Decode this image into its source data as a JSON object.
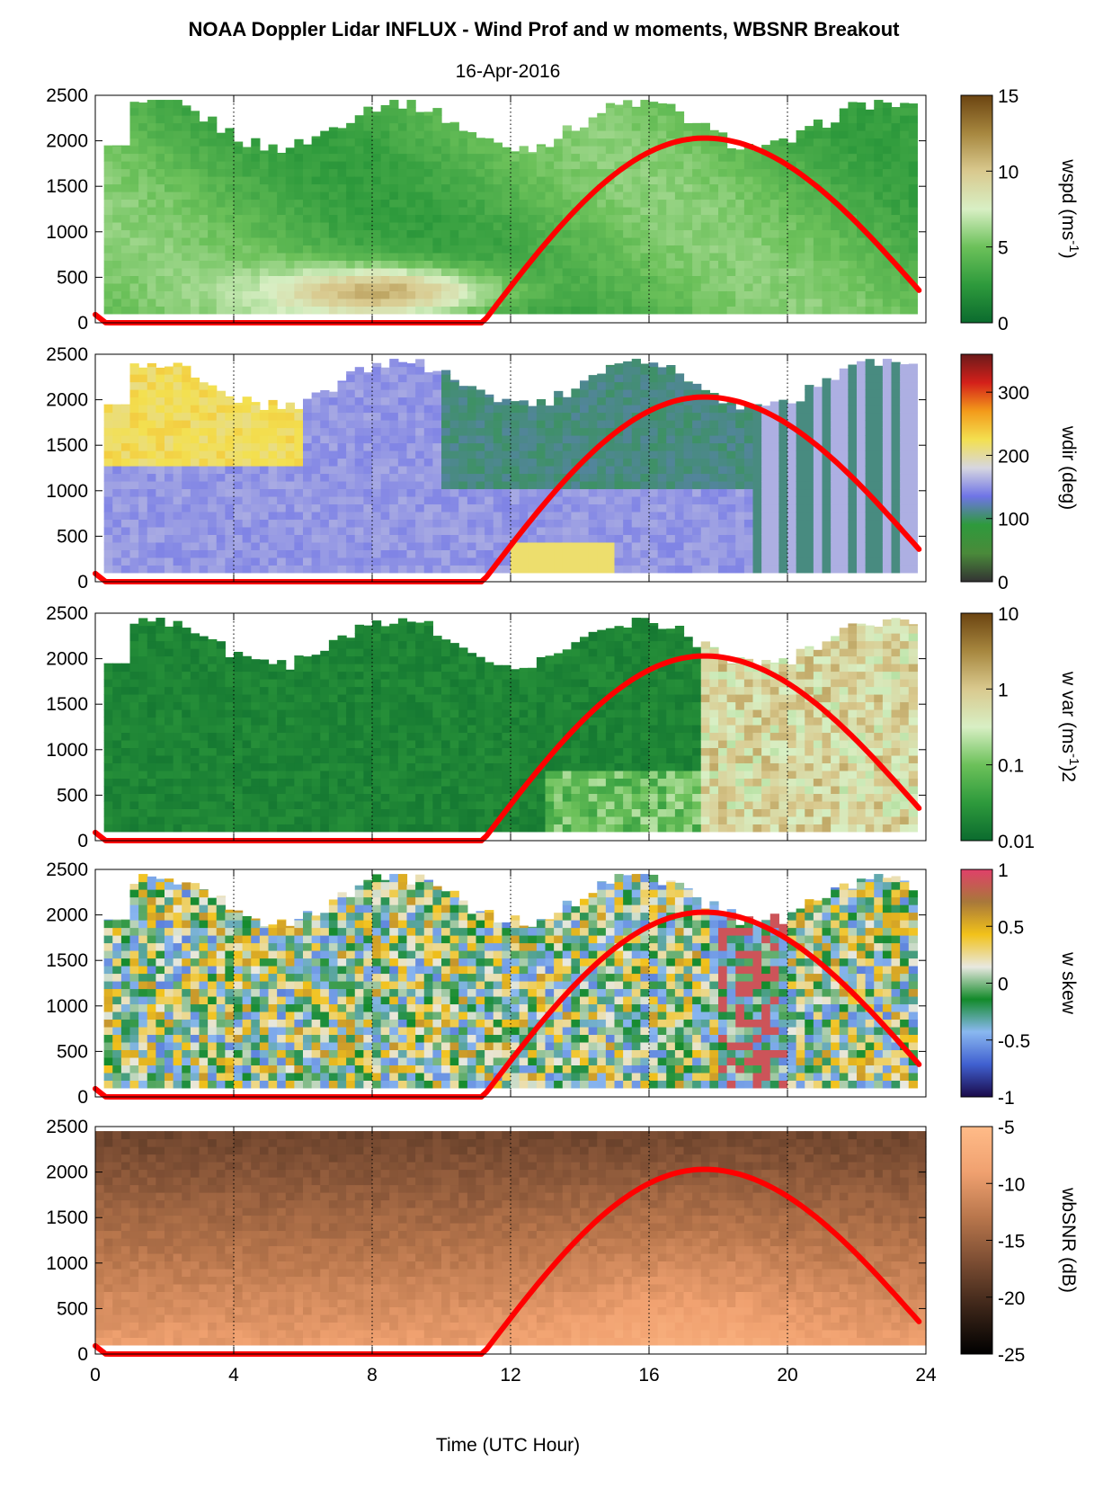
{
  "figure": {
    "title": "NOAA Doppler Lidar INFLUX - Wind Prof and w moments, WBSNR Breakout",
    "subtitle": "16-Apr-2016"
  },
  "colors": {
    "sun_curve": "#ff0000",
    "axes": "#000000",
    "background": "#ffffff"
  },
  "chart_data": [
    {
      "type": "heatmap",
      "name": "wspd",
      "x_range": [
        0,
        24
      ],
      "y_range": [
        0,
        2500
      ],
      "y_ticks": [
        0,
        500,
        1000,
        1500,
        2000,
        2500
      ],
      "colorbar_label": "wspd (ms-1)",
      "colorbar_label_text": "wspd (ms",
      "colorbar_label_sup": "-1",
      "colorbar_label_end": ")",
      "colorbar_range": [
        0,
        15
      ],
      "colorbar_ticks": [
        "0",
        "5",
        "10",
        "15"
      ],
      "colormap": [
        "#0b6b2e",
        "#2e9a3c",
        "#6cc15a",
        "#d8efc4",
        "#d9c98e",
        "#a7873f",
        "#6b4411"
      ],
      "sun_curve": [
        [
          0,
          0.09
        ],
        [
          0.3,
          0
        ],
        [
          11.2,
          0
        ],
        [
          17.6,
          2030
        ],
        [
          23.8,
          290
        ]
      ]
    },
    {
      "type": "heatmap",
      "name": "wdir",
      "x_range": [
        0,
        24
      ],
      "y_range": [
        0,
        2500
      ],
      "y_ticks": [
        0,
        500,
        1000,
        1500,
        2000,
        2500
      ],
      "colorbar_label": "wdir (deg)",
      "colorbar_label_text": "wdir (deg)",
      "colorbar_label_sup": "",
      "colorbar_label_end": "",
      "colorbar_range": [
        0,
        360
      ],
      "colorbar_ticks": [
        "0",
        "100",
        "200",
        "300"
      ],
      "colormap": [
        "#333333",
        "#4a8a3a",
        "#2e9a3c",
        "#6f74e6",
        "#d6d6e0",
        "#f3e050",
        "#f39a1a",
        "#d4201a",
        "#6b1a1a"
      ],
      "sun_curve": [
        [
          0,
          0.09
        ],
        [
          0.3,
          0
        ],
        [
          11.2,
          0
        ],
        [
          17.6,
          2030
        ],
        [
          23.8,
          290
        ]
      ]
    },
    {
      "type": "heatmap",
      "name": "w var",
      "x_range": [
        0,
        24
      ],
      "y_range": [
        0,
        2500
      ],
      "y_ticks": [
        0,
        500,
        1000,
        1500,
        2000,
        2500
      ],
      "colorbar_label": "w var (ms-1)2",
      "colorbar_label_text": "w var (ms",
      "colorbar_label_sup": "-1",
      "colorbar_label_end": ")2",
      "colorbar_range": [
        0.01,
        10
      ],
      "colorbar_scale": "log",
      "colorbar_ticks": [
        "0.01",
        "0.1",
        "1",
        "10"
      ],
      "colormap": [
        "#0b6b2e",
        "#2e9a3c",
        "#6cc15a",
        "#d8efc4",
        "#d9c98e",
        "#a7873f",
        "#6b4411"
      ],
      "sun_curve": [
        [
          0,
          0.09
        ],
        [
          0.3,
          0
        ],
        [
          11.2,
          0
        ],
        [
          17.6,
          2030
        ],
        [
          23.8,
          290
        ]
      ]
    },
    {
      "type": "heatmap",
      "name": "w skew",
      "x_range": [
        0,
        24
      ],
      "y_range": [
        0,
        2500
      ],
      "y_ticks": [
        0,
        500,
        1000,
        1500,
        2000,
        2500
      ],
      "colorbar_label": "w skew",
      "colorbar_label_text": "w skew",
      "colorbar_label_sup": "",
      "colorbar_label_end": "",
      "colorbar_range": [
        -1,
        1
      ],
      "colorbar_ticks": [
        "-1",
        "-0.5",
        "0",
        "0.5",
        "1"
      ],
      "colormap": [
        "#1a0a4a",
        "#4060d0",
        "#8ab8f0",
        "#138a2a",
        "#e8e8e0",
        "#f2c21a",
        "#a8783a",
        "#e0406a"
      ],
      "sun_curve": [
        [
          0,
          0.09
        ],
        [
          0.3,
          0
        ],
        [
          11.2,
          0
        ],
        [
          17.6,
          2030
        ],
        [
          23.8,
          290
        ]
      ]
    },
    {
      "type": "heatmap",
      "name": "wbSNR",
      "x_range": [
        0,
        24
      ],
      "y_range": [
        0,
        2500
      ],
      "y_ticks": [
        0,
        500,
        1000,
        1500,
        2000,
        2500
      ],
      "colorbar_label": "wbSNR (dB)",
      "colorbar_label_text": "wbSNR (dB)",
      "colorbar_label_sup": "",
      "colorbar_label_end": "",
      "colorbar_range": [
        -25,
        -5
      ],
      "colorbar_ticks": [
        "-25",
        "-20",
        "-15",
        "-10",
        "-5"
      ],
      "colormap": [
        "#000000",
        "#3a2418",
        "#7a4c32",
        "#b8764c",
        "#f0a170",
        "#ffbb88"
      ],
      "sun_curve": [
        [
          0,
          0.09
        ],
        [
          0.3,
          0
        ],
        [
          11.2,
          0
        ],
        [
          17.6,
          2030
        ],
        [
          23.8,
          290
        ]
      ]
    }
  ],
  "x_axis": {
    "label": "Time (UTC Hour)",
    "ticks": [
      "0",
      "4",
      "8",
      "12",
      "16",
      "20",
      "24"
    ],
    "range": [
      0,
      24
    ]
  }
}
